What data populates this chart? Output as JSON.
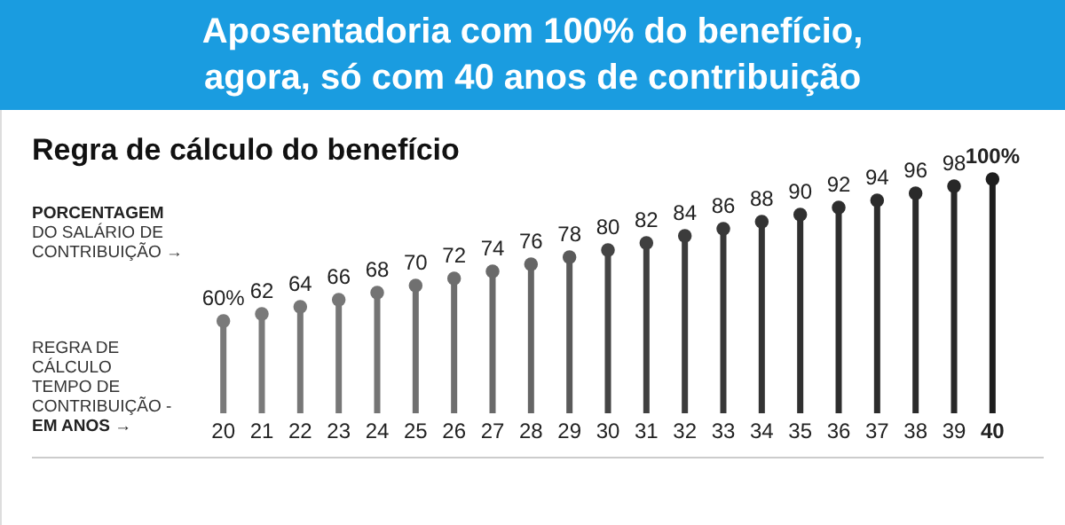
{
  "chart_data": {
    "type": "lollipop",
    "title": "Aposentadoria com 100% do benefício,\nagora, só com 40 anos de contribuição",
    "subtitle": "Regra de cálculo do benefício",
    "ylabel": "PORCENTAGEM\nDO SALÁRIO DE\nCONTRIBUIÇÃO →",
    "xlabel": "REGRA DE\nCÁLCULO\nTEMPO DE\nCONTRIBUIÇÃO -\nEM ANOS       →",
    "categories": [
      "20",
      "21",
      "22",
      "23",
      "24",
      "25",
      "26",
      "27",
      "28",
      "29",
      "30",
      "31",
      "32",
      "33",
      "34",
      "35",
      "36",
      "37",
      "38",
      "39",
      "40"
    ],
    "values": [
      60,
      62,
      64,
      66,
      68,
      70,
      72,
      74,
      76,
      78,
      80,
      82,
      84,
      86,
      88,
      90,
      92,
      94,
      96,
      98,
      100
    ],
    "value_labels": [
      "60%",
      "62",
      "64",
      "66",
      "68",
      "70",
      "72",
      "74",
      "76",
      "78",
      "80",
      "82",
      "84",
      "86",
      "88",
      "90",
      "92",
      "94",
      "96",
      "98",
      "100%"
    ],
    "colors": [
      "#7a7a7a",
      "#7a7a7a",
      "#777777",
      "#777777",
      "#747474",
      "#707070",
      "#6e6e6e",
      "#6a6a6a",
      "#666666",
      "#5a5a5a",
      "#444444",
      "#404040",
      "#3c3c3c",
      "#383838",
      "#343434",
      "#303030",
      "#2e2e2e",
      "#2c2c2c",
      "#2a2a2a",
      "#282828",
      "#1e1e1e"
    ],
    "ylim": [
      34,
      100
    ]
  }
}
